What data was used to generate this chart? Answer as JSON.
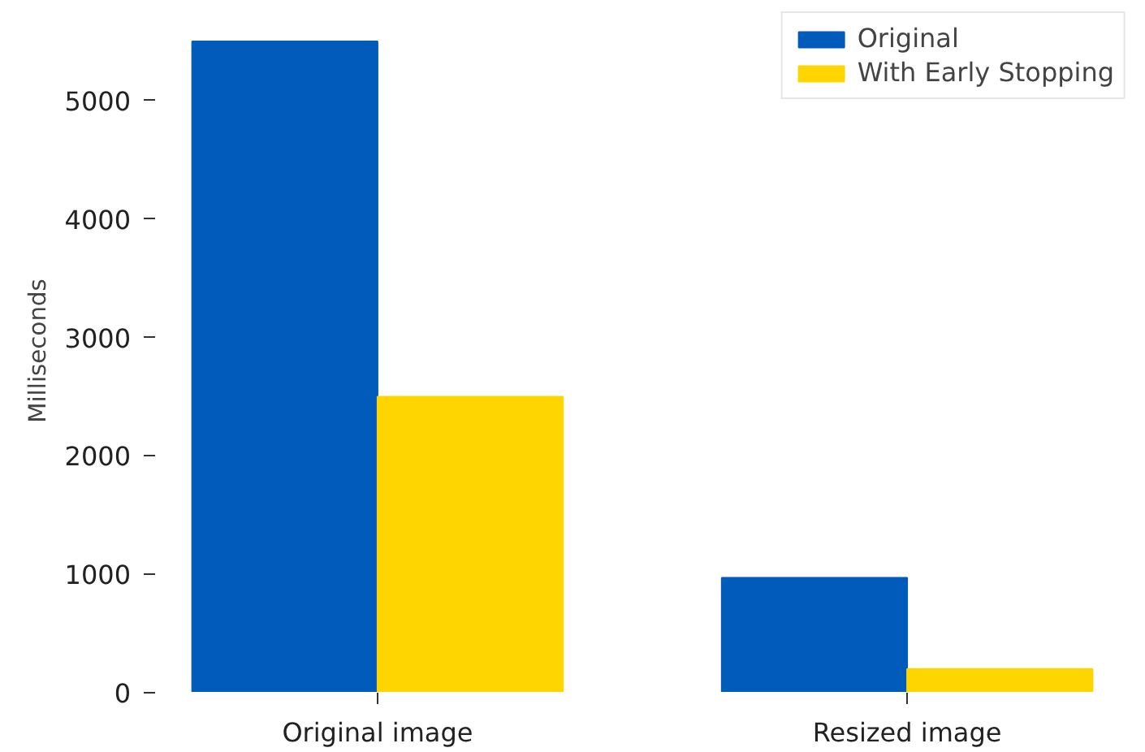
{
  "chart_data": {
    "type": "bar",
    "ylabel": "Milliseconds",
    "categories": [
      "Original image",
      "Resized image"
    ],
    "series": [
      {
        "name": "Original",
        "color": "#005bbb",
        "values": [
          5500,
          970
        ]
      },
      {
        "name": "With Early Stopping",
        "color": "#ffd500",
        "values": [
          2500,
          200
        ]
      }
    ],
    "ylim": [
      0,
      5775
    ],
    "yticks": [
      0,
      1000,
      2000,
      3000,
      4000,
      5000
    ],
    "grid": false,
    "legend": "top right"
  }
}
